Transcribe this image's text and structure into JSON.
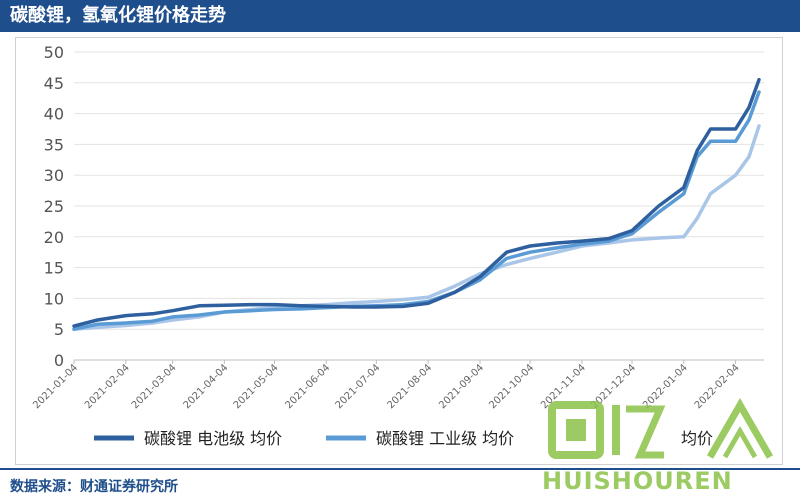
{
  "header": {
    "title": "碳酸锂，氢氧化锂价格走势"
  },
  "footer": {
    "source": "数据来源：财通证券研究所"
  },
  "watermark": {
    "text": "HUISHOUREN",
    "color": "#8bc34a"
  },
  "colors": {
    "series_battery": "#2e5f9e",
    "series_industrial": "#5b9bd5",
    "series_hydroxide": "#a9c6e8"
  },
  "chart_data": {
    "type": "line",
    "title": "",
    "xlabel": "",
    "ylabel": "",
    "ylim": [
      0,
      50
    ],
    "yticks": [
      0,
      5,
      10,
      15,
      20,
      25,
      30,
      35,
      40,
      45,
      50
    ],
    "xticks": [
      "2021-01-04",
      "2021-02-04",
      "2021-03-04",
      "2021-04-04",
      "2021-05-04",
      "2021-06-04",
      "2021-07-04",
      "2021-08-04",
      "2021-09-04",
      "2021-10-04",
      "2021-11-04",
      "2021-12-04",
      "2022-01-04",
      "2022-02-04"
    ],
    "grid": "horizontal",
    "legend_position": "bottom",
    "series": [
      {
        "name": "碳酸锂 电池级 均价",
        "color": "#2e5f9e",
        "points": [
          [
            "2021-01-04",
            5.5
          ],
          [
            "2021-01-18",
            6.5
          ],
          [
            "2021-02-04",
            7.2
          ],
          [
            "2021-02-20",
            7.5
          ],
          [
            "2021-03-04",
            8.0
          ],
          [
            "2021-03-20",
            8.8
          ],
          [
            "2021-04-04",
            8.9
          ],
          [
            "2021-04-20",
            9.0
          ],
          [
            "2021-05-04",
            9.0
          ],
          [
            "2021-05-20",
            8.8
          ],
          [
            "2021-06-04",
            8.7
          ],
          [
            "2021-06-20",
            8.6
          ],
          [
            "2021-07-04",
            8.6
          ],
          [
            "2021-07-20",
            8.7
          ],
          [
            "2021-08-04",
            9.2
          ],
          [
            "2021-08-20",
            11.0
          ],
          [
            "2021-09-04",
            13.5
          ],
          [
            "2021-09-20",
            17.5
          ],
          [
            "2021-10-04",
            18.5
          ],
          [
            "2021-10-20",
            19.0
          ],
          [
            "2021-11-04",
            19.3
          ],
          [
            "2021-11-20",
            19.7
          ],
          [
            "2021-12-04",
            21.0
          ],
          [
            "2021-12-20",
            25.0
          ],
          [
            "2022-01-04",
            28.0
          ],
          [
            "2022-01-12",
            34.0
          ],
          [
            "2022-01-20",
            37.5
          ],
          [
            "2022-02-04",
            37.5
          ],
          [
            "2022-02-12",
            41.0
          ],
          [
            "2022-02-18",
            45.5
          ]
        ]
      },
      {
        "name": "碳酸锂 工业级 均价",
        "color": "#5b9bd5",
        "points": [
          [
            "2021-01-04",
            5.0
          ],
          [
            "2021-01-18",
            5.8
          ],
          [
            "2021-02-04",
            6.0
          ],
          [
            "2021-02-20",
            6.3
          ],
          [
            "2021-03-04",
            7.0
          ],
          [
            "2021-03-20",
            7.3
          ],
          [
            "2021-04-04",
            7.8
          ],
          [
            "2021-04-20",
            8.0
          ],
          [
            "2021-05-04",
            8.2
          ],
          [
            "2021-05-20",
            8.3
          ],
          [
            "2021-06-04",
            8.5
          ],
          [
            "2021-06-20",
            8.7
          ],
          [
            "2021-07-04",
            8.8
          ],
          [
            "2021-07-20",
            9.0
          ],
          [
            "2021-08-04",
            9.5
          ],
          [
            "2021-08-20",
            11.0
          ],
          [
            "2021-09-04",
            13.0
          ],
          [
            "2021-09-20",
            16.5
          ],
          [
            "2021-10-04",
            17.5
          ],
          [
            "2021-10-20",
            18.2
          ],
          [
            "2021-11-04",
            18.8
          ],
          [
            "2021-11-20",
            19.3
          ],
          [
            "2021-12-04",
            20.5
          ],
          [
            "2021-12-20",
            24.0
          ],
          [
            "2022-01-04",
            27.0
          ],
          [
            "2022-01-12",
            33.0
          ],
          [
            "2022-01-20",
            35.5
          ],
          [
            "2022-02-04",
            35.5
          ],
          [
            "2022-02-12",
            39.0
          ],
          [
            "2022-02-18",
            43.5
          ]
        ]
      },
      {
        "name": "",
        "color": "#a9c6e8",
        "points": [
          [
            "2021-01-04",
            5.0
          ],
          [
            "2021-01-18",
            5.3
          ],
          [
            "2021-02-04",
            5.6
          ],
          [
            "2021-02-20",
            6.0
          ],
          [
            "2021-03-04",
            6.5
          ],
          [
            "2021-03-20",
            7.0
          ],
          [
            "2021-04-04",
            7.8
          ],
          [
            "2021-04-20",
            8.2
          ],
          [
            "2021-05-04",
            8.5
          ],
          [
            "2021-05-20",
            8.8
          ],
          [
            "2021-06-04",
            9.0
          ],
          [
            "2021-06-20",
            9.3
          ],
          [
            "2021-07-04",
            9.5
          ],
          [
            "2021-07-20",
            9.8
          ],
          [
            "2021-08-04",
            10.2
          ],
          [
            "2021-08-20",
            12.0
          ],
          [
            "2021-09-04",
            14.0
          ],
          [
            "2021-09-20",
            15.5
          ],
          [
            "2021-10-04",
            16.5
          ],
          [
            "2021-10-20",
            17.5
          ],
          [
            "2021-11-04",
            18.5
          ],
          [
            "2021-11-20",
            19.0
          ],
          [
            "2021-12-04",
            19.5
          ],
          [
            "2021-12-20",
            19.8
          ],
          [
            "2022-01-04",
            20.0
          ],
          [
            "2022-01-12",
            23.0
          ],
          [
            "2022-01-20",
            27.0
          ],
          [
            "2022-02-04",
            30.0
          ],
          [
            "2022-02-12",
            33.0
          ],
          [
            "2022-02-18",
            38.0
          ]
        ]
      }
    ],
    "legend": [
      "碳酸锂 电池级 均价",
      "碳酸锂 工业级 均价",
      "均价"
    ]
  }
}
